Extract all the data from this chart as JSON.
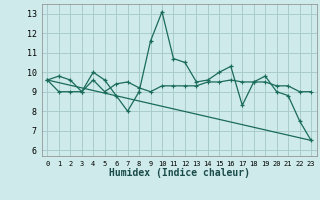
{
  "xlabel": "Humidex (Indice chaleur)",
  "background_color": "#ceeaea",
  "grid_color": "#aacccc",
  "line_color": "#1a6b5a",
  "xlim": [
    -0.5,
    23.5
  ],
  "ylim": [
    5.7,
    13.5
  ],
  "yticks": [
    6,
    7,
    8,
    9,
    10,
    11,
    12,
    13
  ],
  "xticks": [
    0,
    1,
    2,
    3,
    4,
    5,
    6,
    7,
    8,
    9,
    10,
    11,
    12,
    13,
    14,
    15,
    16,
    17,
    18,
    19,
    20,
    21,
    22,
    23
  ],
  "series1_x": [
    0,
    1,
    2,
    3,
    4,
    5,
    6,
    7,
    8,
    9,
    10,
    11,
    12,
    13,
    14,
    15,
    16,
    17,
    18,
    19,
    20,
    21,
    22,
    23
  ],
  "series1_y": [
    9.6,
    9.8,
    9.6,
    9.0,
    10.0,
    9.6,
    8.8,
    8.0,
    9.0,
    11.6,
    13.1,
    10.7,
    10.5,
    9.5,
    9.6,
    10.0,
    10.3,
    8.3,
    9.5,
    9.8,
    9.0,
    8.8,
    7.5,
    6.5
  ],
  "series2_x": [
    0,
    1,
    2,
    3,
    4,
    5,
    6,
    7,
    8,
    9,
    10,
    11,
    12,
    13,
    14,
    15,
    16,
    17,
    18,
    19,
    20,
    21,
    22,
    23
  ],
  "series2_y": [
    9.6,
    9.0,
    9.0,
    9.0,
    9.6,
    9.0,
    9.4,
    9.5,
    9.2,
    9.0,
    9.3,
    9.3,
    9.3,
    9.3,
    9.5,
    9.5,
    9.6,
    9.5,
    9.5,
    9.5,
    9.3,
    9.3,
    9.0,
    9.0
  ],
  "trend_x": [
    0,
    23
  ],
  "trend_y": [
    9.6,
    6.5
  ]
}
